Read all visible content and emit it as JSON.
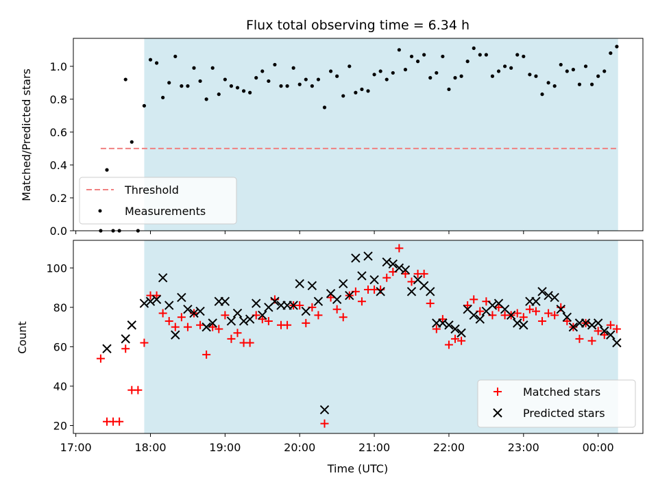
{
  "chart_data": [
    {
      "type": "scatter",
      "title": "Flux total observing time = 6.34 h",
      "ylabel": "Matched/Predicted stars",
      "xlabel": "",
      "ylim": [
        0,
        1.17
      ],
      "yticks": [
        "0.0",
        "0.2",
        "0.4",
        "0.6",
        "0.8",
        "1.0"
      ],
      "shaded_interval": [
        "17:55",
        "00:16"
      ],
      "shade_color": "#d4eaf1",
      "threshold": {
        "name": "Threshold",
        "value": 0.5,
        "x_start": "17:20",
        "x_end": "00:16",
        "color": "#f08080"
      },
      "legend": {
        "position": "lower-left",
        "entries": [
          "Threshold",
          "Measurements"
        ]
      },
      "series": [
        {
          "name": "Measurements",
          "marker": "dot",
          "color": "#000000",
          "points": [
            [
              "17:20",
              0.0
            ],
            [
              "17:25",
              0.37
            ],
            [
              "17:30",
              0.0
            ],
            [
              "17:35",
              0.0
            ],
            [
              "17:40",
              0.92
            ],
            [
              "17:45",
              0.54
            ],
            [
              "17:50",
              0.0
            ],
            [
              "17:55",
              0.76
            ],
            [
              "18:00",
              1.04
            ],
            [
              "18:05",
              1.02
            ],
            [
              "18:10",
              0.81
            ],
            [
              "18:15",
              0.9
            ],
            [
              "18:20",
              1.06
            ],
            [
              "18:25",
              0.88
            ],
            [
              "18:30",
              0.88
            ],
            [
              "18:35",
              0.99
            ],
            [
              "18:40",
              0.91
            ],
            [
              "18:45",
              0.8
            ],
            [
              "18:50",
              0.99
            ],
            [
              "18:55",
              0.83
            ],
            [
              "19:00",
              0.92
            ],
            [
              "19:05",
              0.88
            ],
            [
              "19:10",
              0.87
            ],
            [
              "19:15",
              0.85
            ],
            [
              "19:20",
              0.84
            ],
            [
              "19:25",
              0.93
            ],
            [
              "19:30",
              0.97
            ],
            [
              "19:35",
              0.91
            ],
            [
              "19:40",
              1.01
            ],
            [
              "19:45",
              0.88
            ],
            [
              "19:50",
              0.88
            ],
            [
              "19:55",
              0.99
            ],
            [
              "20:00",
              0.89
            ],
            [
              "20:05",
              0.92
            ],
            [
              "20:10",
              0.88
            ],
            [
              "20:15",
              0.92
            ],
            [
              "20:20",
              0.75
            ],
            [
              "20:25",
              0.97
            ],
            [
              "20:30",
              0.94
            ],
            [
              "20:35",
              0.82
            ],
            [
              "20:40",
              1.0
            ],
            [
              "20:45",
              0.84
            ],
            [
              "20:50",
              0.86
            ],
            [
              "20:55",
              0.85
            ],
            [
              "21:00",
              0.95
            ],
            [
              "21:05",
              0.97
            ],
            [
              "21:10",
              0.92
            ],
            [
              "21:15",
              0.96
            ],
            [
              "21:20",
              1.1
            ],
            [
              "21:25",
              0.98
            ],
            [
              "21:30",
              1.06
            ],
            [
              "21:35",
              1.03
            ],
            [
              "21:40",
              1.07
            ],
            [
              "21:45",
              0.93
            ],
            [
              "21:50",
              0.96
            ],
            [
              "21:55",
              1.06
            ],
            [
              "22:00",
              0.86
            ],
            [
              "22:05",
              0.93
            ],
            [
              "22:10",
              0.94
            ],
            [
              "22:15",
              1.03
            ],
            [
              "22:20",
              1.11
            ],
            [
              "22:25",
              1.07
            ],
            [
              "22:30",
              1.07
            ],
            [
              "22:35",
              0.94
            ],
            [
              "22:40",
              0.97
            ],
            [
              "22:45",
              1.0
            ],
            [
              "22:50",
              0.99
            ],
            [
              "22:55",
              1.07
            ],
            [
              "23:00",
              1.06
            ],
            [
              "23:05",
              0.95
            ],
            [
              "23:10",
              0.94
            ],
            [
              "23:15",
              0.83
            ],
            [
              "23:20",
              0.9
            ],
            [
              "23:25",
              0.88
            ],
            [
              "23:30",
              1.01
            ],
            [
              "23:35",
              0.97
            ],
            [
              "23:40",
              0.98
            ],
            [
              "23:45",
              0.89
            ],
            [
              "23:50",
              1.0
            ],
            [
              "23:55",
              0.89
            ],
            [
              "00:00",
              0.94
            ],
            [
              "00:05",
              0.97
            ],
            [
              "00:10",
              1.08
            ],
            [
              "00:15",
              1.12
            ]
          ]
        }
      ]
    },
    {
      "type": "scatter",
      "title": "",
      "ylabel": "Count",
      "xlabel": "Time (UTC)",
      "ylim": [
        16,
        114
      ],
      "yticks": [
        "20",
        "40",
        "60",
        "80",
        "100"
      ],
      "xticks": [
        "17:00",
        "18:00",
        "19:00",
        "20:00",
        "21:00",
        "22:00",
        "23:00",
        "00:00"
      ],
      "xlim": [
        "16:58",
        "00:36"
      ],
      "shaded_interval": [
        "17:55",
        "00:16"
      ],
      "shade_color": "#d4eaf1",
      "legend": {
        "position": "lower-right",
        "entries": [
          "Matched stars",
          "Predicted stars"
        ]
      },
      "series": [
        {
          "name": "Matched stars",
          "marker": "plus",
          "color": "#ff0000",
          "points": [
            [
              "17:20",
              54
            ],
            [
              "17:25",
              22
            ],
            [
              "17:30",
              22
            ],
            [
              "17:35",
              22
            ],
            [
              "17:40",
              59
            ],
            [
              "17:45",
              38
            ],
            [
              "17:50",
              38
            ],
            [
              "17:55",
              62
            ],
            [
              "18:00",
              86
            ],
            [
              "18:05",
              86
            ],
            [
              "18:10",
              77
            ],
            [
              "18:15",
              73
            ],
            [
              "18:20",
              70
            ],
            [
              "18:25",
              75
            ],
            [
              "18:30",
              70
            ],
            [
              "18:35",
              77
            ],
            [
              "18:40",
              71
            ],
            [
              "18:45",
              56
            ],
            [
              "18:50",
              70
            ],
            [
              "18:55",
              69
            ],
            [
              "19:00",
              76
            ],
            [
              "19:05",
              64
            ],
            [
              "19:10",
              67
            ],
            [
              "19:15",
              62
            ],
            [
              "19:20",
              62
            ],
            [
              "19:25",
              76
            ],
            [
              "19:30",
              74
            ],
            [
              "19:35",
              73
            ],
            [
              "19:40",
              84
            ],
            [
              "19:45",
              71
            ],
            [
              "19:50",
              71
            ],
            [
              "19:55",
              81
            ],
            [
              "20:00",
              81
            ],
            [
              "20:05",
              72
            ],
            [
              "20:10",
              80
            ],
            [
              "20:15",
              76
            ],
            [
              "20:20",
              21
            ],
            [
              "20:25",
              85
            ],
            [
              "20:30",
              79
            ],
            [
              "20:35",
              75
            ],
            [
              "20:40",
              86
            ],
            [
              "20:45",
              88
            ],
            [
              "20:50",
              83
            ],
            [
              "20:55",
              89
            ],
            [
              "21:00",
              89
            ],
            [
              "21:05",
              89
            ],
            [
              "21:10",
              95
            ],
            [
              "21:15",
              98
            ],
            [
              "21:20",
              110
            ],
            [
              "21:25",
              97
            ],
            [
              "21:30",
              93
            ],
            [
              "21:35",
              97
            ],
            [
              "21:40",
              97
            ],
            [
              "21:45",
              82
            ],
            [
              "21:50",
              69
            ],
            [
              "21:55",
              74
            ],
            [
              "22:00",
              61
            ],
            [
              "22:05",
              64
            ],
            [
              "22:10",
              63
            ],
            [
              "22:15",
              81
            ],
            [
              "22:20",
              84
            ],
            [
              "22:25",
              78
            ],
            [
              "22:30",
              83
            ],
            [
              "22:35",
              76
            ],
            [
              "22:40",
              80
            ],
            [
              "22:45",
              76
            ],
            [
              "22:50",
              76
            ],
            [
              "22:55",
              77
            ],
            [
              "23:00",
              75
            ],
            [
              "23:05",
              79
            ],
            [
              "23:10",
              78
            ],
            [
              "23:15",
              73
            ],
            [
              "23:20",
              77
            ],
            [
              "23:25",
              76
            ],
            [
              "23:30",
              80
            ],
            [
              "23:35",
              73
            ],
            [
              "23:40",
              70
            ],
            [
              "23:45",
              64
            ],
            [
              "23:50",
              72
            ],
            [
              "23:55",
              63
            ],
            [
              "00:00",
              68
            ],
            [
              "00:05",
              66
            ],
            [
              "00:10",
              71
            ],
            [
              "00:15",
              69
            ]
          ]
        },
        {
          "name": "Predicted stars",
          "marker": "x",
          "color": "#000000",
          "points": [
            [
              "17:25",
              59
            ],
            [
              "17:40",
              64
            ],
            [
              "17:45",
              71
            ],
            [
              "17:55",
              82
            ],
            [
              "18:00",
              83
            ],
            [
              "18:05",
              84
            ],
            [
              "18:10",
              95
            ],
            [
              "18:15",
              81
            ],
            [
              "18:20",
              66
            ],
            [
              "18:25",
              85
            ],
            [
              "18:30",
              79
            ],
            [
              "18:35",
              77
            ],
            [
              "18:40",
              78
            ],
            [
              "18:45",
              70
            ],
            [
              "18:50",
              72
            ],
            [
              "18:55",
              83
            ],
            [
              "19:00",
              83
            ],
            [
              "19:05",
              73
            ],
            [
              "19:10",
              77
            ],
            [
              "19:15",
              73
            ],
            [
              "19:20",
              74
            ],
            [
              "19:25",
              82
            ],
            [
              "19:30",
              76
            ],
            [
              "19:35",
              80
            ],
            [
              "19:40",
              83
            ],
            [
              "19:45",
              81
            ],
            [
              "19:50",
              81
            ],
            [
              "19:55",
              81
            ],
            [
              "20:00",
              92
            ],
            [
              "20:05",
              78
            ],
            [
              "20:10",
              91
            ],
            [
              "20:15",
              83
            ],
            [
              "20:20",
              28
            ],
            [
              "20:25",
              87
            ],
            [
              "20:30",
              84
            ],
            [
              "20:35",
              92
            ],
            [
              "20:40",
              86
            ],
            [
              "20:45",
              105
            ],
            [
              "20:50",
              96
            ],
            [
              "20:55",
              106
            ],
            [
              "21:00",
              94
            ],
            [
              "21:05",
              88
            ],
            [
              "21:10",
              103
            ],
            [
              "21:15",
              102
            ],
            [
              "21:20",
              100
            ],
            [
              "21:25",
              99
            ],
            [
              "21:30",
              88
            ],
            [
              "21:35",
              94
            ],
            [
              "21:40",
              91
            ],
            [
              "21:45",
              88
            ],
            [
              "21:50",
              72
            ],
            [
              "21:55",
              72
            ],
            [
              "22:00",
              71
            ],
            [
              "22:05",
              69
            ],
            [
              "22:10",
              67
            ],
            [
              "22:15",
              79
            ],
            [
              "22:20",
              76
            ],
            [
              "22:25",
              74
            ],
            [
              "22:30",
              78
            ],
            [
              "22:35",
              81
            ],
            [
              "22:40",
              82
            ],
            [
              "22:45",
              79
            ],
            [
              "22:50",
              76
            ],
            [
              "22:55",
              72
            ],
            [
              "23:00",
              71
            ],
            [
              "23:05",
              83
            ],
            [
              "23:10",
              83
            ],
            [
              "23:15",
              88
            ],
            [
              "23:20",
              86
            ],
            [
              "23:25",
              85
            ],
            [
              "23:30",
              79
            ],
            [
              "23:35",
              75
            ],
            [
              "23:40",
              70
            ],
            [
              "23:45",
              72
            ],
            [
              "23:50",
              72
            ],
            [
              "23:55",
              71
            ],
            [
              "00:00",
              72
            ],
            [
              "00:05",
              68
            ],
            [
              "00:10",
              66
            ],
            [
              "00:15",
              62
            ]
          ]
        }
      ]
    }
  ]
}
